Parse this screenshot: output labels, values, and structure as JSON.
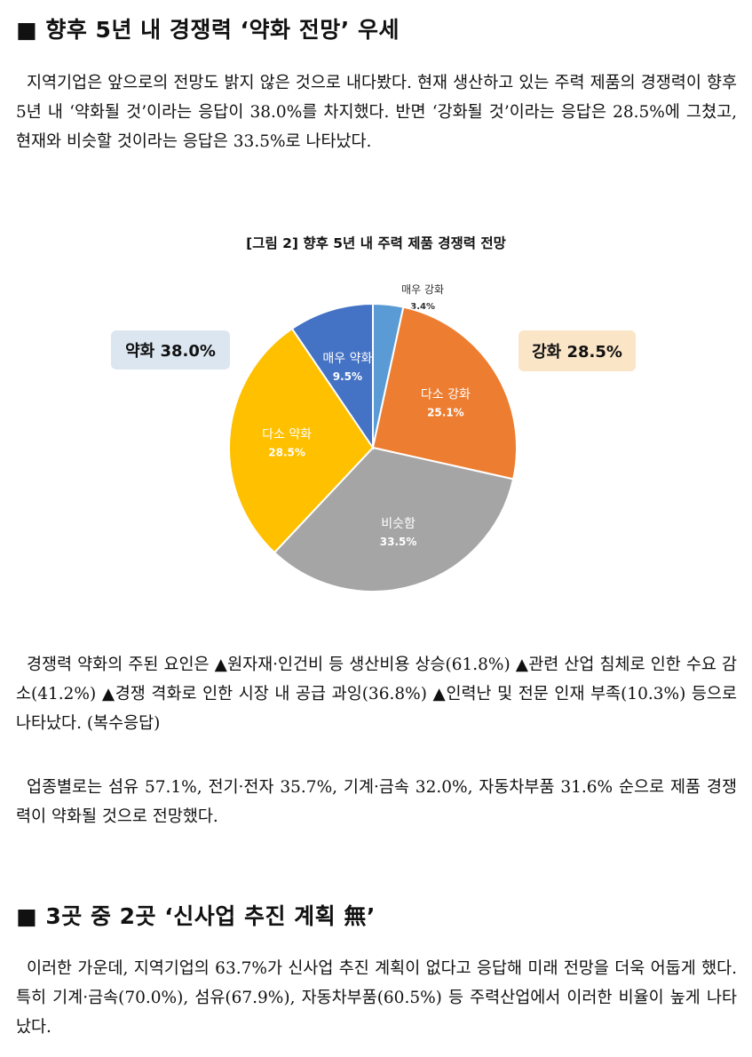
{
  "section1": {
    "bullet": "■",
    "heading": "향후 5년 내 경쟁력 ‘약화 전망’ 우세",
    "para1": "지역기업은 앞으로의 전망도 밝지 않은 것으로 내다봤다. 현재 생산하고 있는 주력 제품의 경쟁력이 향후 5년 내 ‘약화될 것’이라는 응답이 38.0%를 차지했다. 반면 ‘강화될 것’이라는 응답은 28.5%에 그쳤고, 현재와 비슷할 것이라는 응답은 33.5%로 나타났다.",
    "para2": "경쟁력 약화의 주된 요인은 ▲원자재·인건비 등 생산비용 상승(61.8%) ▲관련 산업 침체로 인한 수요 감소(41.2%) ▲경쟁 격화로 인한 시장 내 공급 과잉(36.8%) ▲인력난 및 전문 인재 부족(10.3%) 등으로 나타났다. (복수응답)",
    "para3": "업종별로는 섬유 57.1%, 전기·전자 35.7%, 기계·금속 32.0%, 자동차부품 31.6% 순으로 제품 경쟁력이 약화될 것으로 전망했다."
  },
  "section2": {
    "bullet": "■",
    "heading": "3곳 중 2곳 ‘신사업 추진 계획 無’",
    "para1": "이러한 가운데, 지역기업의 63.7%가 신사업 추진 계획이 없다고 응답해 미래 전망을 더욱 어둡게 했다. 특히 기계·금속(70.0%), 섬유(67.9%), 자동차부품(60.5%) 등 주력산업에서 이러한 비율이 높게 나타났다."
  },
  "chart_data": {
    "type": "pie",
    "title": "[그림 2] 향후 5년 내 주력 제품 경쟁력 전망",
    "slices": [
      {
        "label": "매우 강화",
        "value": 3.4,
        "display": "3.4%",
        "color": "#5b9bd5"
      },
      {
        "label": "다소 강화",
        "value": 25.1,
        "display": "25.1%",
        "color": "#ed7d31"
      },
      {
        "label": "비슷함",
        "value": 33.5,
        "display": "33.5%",
        "color": "#a5a5a5"
      },
      {
        "label": "다소 약화",
        "value": 28.5,
        "display": "28.5%",
        "color": "#ffc000"
      },
      {
        "label": "매우 약화",
        "value": 9.5,
        "display": "9.5%",
        "color": "#4472c4"
      }
    ],
    "group_labels": [
      {
        "label": "약화 38.0%",
        "bg": "#dce6f1"
      },
      {
        "label": "강화 28.5%",
        "bg": "#fbe5c7"
      }
    ]
  }
}
